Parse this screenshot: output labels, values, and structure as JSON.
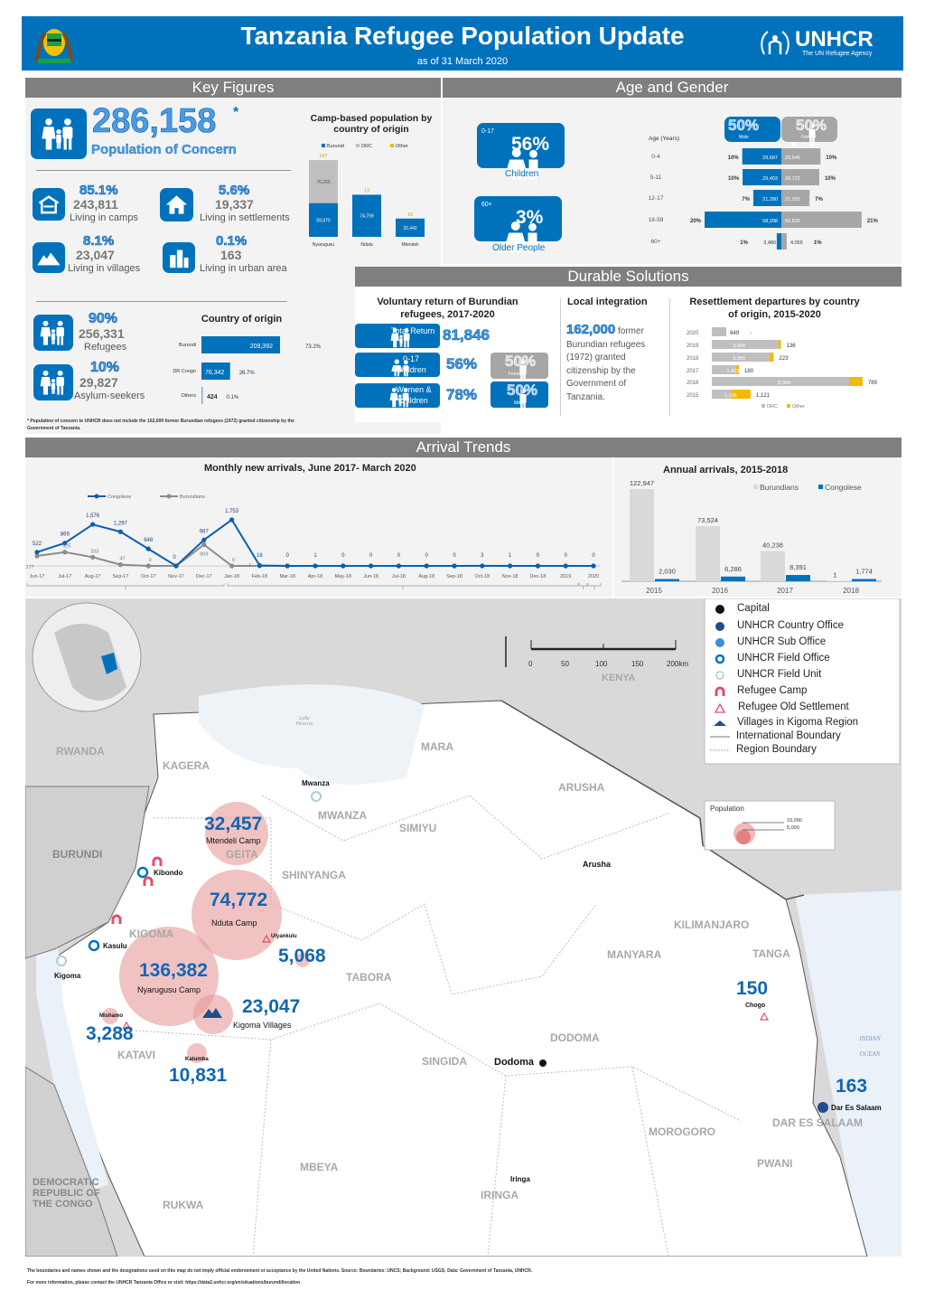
{
  "header": {
    "title": "Tanzania Refugee Population Update",
    "subtitle": "as of 31 March 2020",
    "logo_text": "UNHCR",
    "logo_tagline": "The UN Refugee Agency",
    "brand_color": "#0072bc"
  },
  "sections": {
    "key_figures": "Key Figures",
    "age_gender": "Age and Gender",
    "durable": "Durable Solutions",
    "arrivals": "Arrival Trends"
  },
  "key_figures": {
    "total": "286,158",
    "total_star": "*",
    "total_label": "Population of Concern",
    "camps": {
      "pct": "85.1%",
      "value": "243,811",
      "label": "Living in camps"
    },
    "settlements": {
      "pct": "5.6%",
      "value": "19,337",
      "label": "Living in settlements"
    },
    "villages": {
      "pct": "8.1%",
      "value": "23,047",
      "label": "Living in villages"
    },
    "urban": {
      "pct": "0.1%",
      "value": "163",
      "label": "Living in urban area"
    },
    "refugees": {
      "pct": "90%",
      "value": "256,331",
      "label": "Refugees"
    },
    "asylum": {
      "pct": "10%",
      "value": "29,827",
      "label": "Asylum-seekers"
    },
    "footnote": "* Population of concern to UNHCR does not include the 162,000 former Burundian refugees (1972) granted citizenship by the Government of Tanzania."
  },
  "age_gender": {
    "children": {
      "range": "0-17",
      "pct": "56%",
      "label": "Children"
    },
    "older": {
      "range": "60+",
      "pct": "3%",
      "label": "Older People"
    },
    "male": {
      "pct": "50%",
      "label": "Male"
    },
    "female": {
      "pct": "50%",
      "label": "Female"
    },
    "age_header": "Age (Years)"
  },
  "durable": {
    "voluntary_title": "Voluntary return of Burundian refugees,  2017-2020",
    "total_return_label": "Total Return",
    "total_return": "81,846",
    "children_label": "0-17 Children",
    "children_pct": "56%",
    "women_label": "Women & children",
    "women_pct": "78%",
    "female_pct": "50%",
    "female_label": "Female",
    "male_pct": "50%",
    "male_label": "Male",
    "local_title": "Local integration",
    "local_number": "162,000",
    "local_text_1": " former",
    "local_text_2": "Burundian refugees (1972) granted citizenship by the Government of Tanzania.",
    "resettle_title": "Resettlement departures by country of origin, 2015-2020"
  },
  "chart_data": [
    {
      "id": "camp",
      "type": "bar",
      "stacked": true,
      "title": "Camp-based population by country of origin",
      "categories": [
        "Nyarugusu",
        "Nduta",
        "Mtendeli"
      ],
      "series": [
        {
          "name": "Burundi",
          "color": "#0072bc",
          "values": [
            59970,
            74759,
            32442
          ]
        },
        {
          "name": "DRC",
          "color": "#bfbfbf",
          "values": [
            76265,
            0,
            0
          ]
        },
        {
          "name": "Other",
          "color": "#f5b800",
          "values": [
            147,
            13,
            15
          ]
        }
      ]
    },
    {
      "id": "origin",
      "type": "bar",
      "orientation": "horizontal",
      "title": "Country of origin",
      "categories": [
        "Burundi",
        "DR Congo",
        "Others"
      ],
      "values": [
        209392,
        76342,
        424
      ],
      "values_label": [
        "209,392",
        "76,342",
        "424"
      ],
      "pct": [
        "73.2%",
        "26.7%",
        "0.1%"
      ]
    },
    {
      "id": "pyramid",
      "type": "bar",
      "orientation": "horizontal",
      "categories": [
        "0-4",
        "5-11",
        "12-17",
        "18-59",
        "60+"
      ],
      "series": [
        {
          "name": "Male",
          "color": "#0072bc",
          "values": [
            29687,
            29403,
            21280,
            58208,
            3480
          ],
          "pct": [
            "10%",
            "10%",
            "7%",
            "20%",
            "1%"
          ]
        },
        {
          "name": "Female",
          "color": "#a6a6a6",
          "values": [
            29646,
            28722,
            21355,
            60825,
            4055
          ],
          "pct": [
            "10%",
            "10%",
            "7%",
            "21%",
            "1%"
          ]
        }
      ]
    },
    {
      "id": "resettle",
      "type": "bar",
      "orientation": "horizontal",
      "stacked": true,
      "categories": [
        "2020",
        "2019",
        "2018",
        "2017",
        "2016",
        "2015"
      ],
      "series": [
        {
          "name": "DRC",
          "color": "#bfbfbf",
          "values": [
            849,
            3894,
            3380,
            1403,
            8004,
            1138
          ]
        },
        {
          "name": "Other",
          "color": "#f5b800",
          "values": [
            0,
            136,
            223,
            180,
            789,
            1121
          ],
          "labels": [
            "-",
            "136",
            "223",
            "180",
            "789",
            "1,121"
          ]
        }
      ]
    },
    {
      "id": "monthly",
      "type": "line",
      "title": "Monthly new arrivals, June 2017- March 2020",
      "x": [
        "Jun-17",
        "Jul-17",
        "Aug-17",
        "Sep-17",
        "Oct-17",
        "Nov-17",
        "Dec-17",
        "Jan-18",
        "Feb-18",
        "Mar-18",
        "Apr-18",
        "May-18",
        "Jun-18",
        "Jul-18",
        "Aug-18",
        "Sep-18",
        "Oct-18",
        "Nov-18",
        "Dec-18",
        "2019",
        "2020"
      ],
      "series": [
        {
          "name": "Congolese",
          "color": "#0a5fb0",
          "values": [
            522,
            869,
            1576,
            1297,
            648,
            0,
            987,
            1753,
            16,
            0,
            1,
            0,
            0,
            0,
            0,
            0,
            3,
            1,
            0,
            0,
            0
          ]
        },
        {
          "name": "Burundians",
          "color": "#8c8c8c",
          "values": [
            377,
            525,
            333,
            47,
            0,
            0,
            809,
            0,
            1,
            0,
            0,
            0,
            0,
            0,
            0,
            0,
            0,
            0,
            0,
            0,
            0
          ]
        }
      ],
      "legend": "top-left"
    },
    {
      "id": "annual",
      "type": "bar",
      "title": "Annual arrivals, 2015-2018",
      "categories": [
        "2015",
        "2016",
        "2017",
        "2018"
      ],
      "series": [
        {
          "name": "Burundians",
          "color": "#d9d9d9",
          "values": [
            122947,
            73524,
            40238,
            1
          ]
        },
        {
          "name": "Congolese",
          "color": "#0072bc",
          "values": [
            2030,
            6286,
            8391,
            1774
          ]
        }
      ],
      "legend": "top-right"
    }
  ],
  "map": {
    "regions": [
      "RWANDA",
      "KAGERA",
      "MARA",
      "MWANZA",
      "SIMIYU",
      "ARUSHA",
      "GEITA",
      "SHINYANGA",
      "BURUNDI",
      "KIGOMA",
      "TABORA",
      "KILIMANJARO",
      "MANYARA",
      "TANGA",
      "KATAVI",
      "DODOMA",
      "SINGIDA",
      "MOROGORO",
      "DAR ES SALAAM",
      "PWANI",
      "MBEYA",
      "IRINGA",
      "RUKWA",
      "DEMOCRATIC REPUBLIC OF THE CONGO",
      "KENYA"
    ],
    "water": [
      "Lake Victoria",
      "INDIAN OCEAN"
    ],
    "cities": [
      "Mwanza",
      "Kibondo",
      "Kasulu",
      "Kigoma",
      "Arusha",
      "Dodoma",
      "Iringa",
      "Dar Es Salaam",
      "Chogo",
      "Ulyankulu",
      "Mishamo",
      "Katumba"
    ],
    "camps": [
      {
        "value": "32,457",
        "name": "Mtendeli Camp"
      },
      {
        "value": "74,772",
        "name": "Nduta Camp"
      },
      {
        "value": "136,382",
        "name": "Nyarugusu Camp"
      },
      {
        "value": "5,068"
      },
      {
        "value": "23,047",
        "name": "Kigoma Villages"
      },
      {
        "value": "3,288"
      },
      {
        "value": "10,831"
      },
      {
        "value": "150"
      },
      {
        "value": "163"
      }
    ],
    "scale": [
      "0",
      "50",
      "100",
      "150",
      "200km"
    ],
    "legend": [
      "Capital",
      "UNHCR Country Office",
      "UNHCR Sub Office",
      "UNHCR Field Office",
      "UNHCR Field Unit",
      "Refugee Camp",
      "Refugee Old Settlement",
      "Villages in Kigoma Region",
      "International Boundary",
      "Region Boundary"
    ],
    "pop_legend": {
      "title": "Population",
      "v1": "10,000",
      "v2": "5,000"
    }
  },
  "footer": {
    "line1": "The boundaries and names shown and the designations used on this map do not imply official endorsement or acceptance by the United Nations. Source: Boundaries: UNCS; Background: USGS; Data: Government of Tanzania, UNHCR.",
    "line2": "For more information, please contact the UNHCR Tanzania Office or visit: https://data2.unhcr.org/en/situations/burundi/location"
  }
}
